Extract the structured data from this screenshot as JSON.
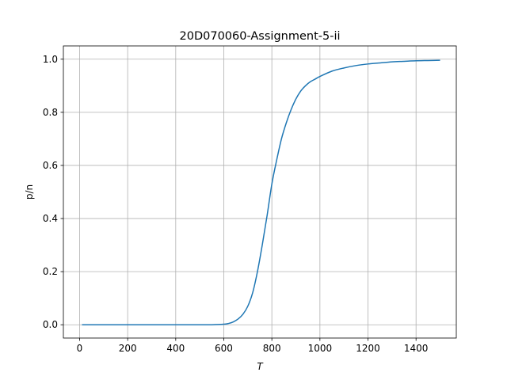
{
  "chart_data": {
    "type": "line",
    "title": "20D070060-Assignment-5-ii",
    "xlabel": "T",
    "ylabel": "p/n",
    "xlim": [
      -67.5,
      1567.5
    ],
    "ylim": [
      -0.05,
      1.05
    ],
    "xticks": [
      0,
      200,
      400,
      600,
      800,
      1000,
      1200,
      1400
    ],
    "yticks": [
      0.0,
      0.2,
      0.4,
      0.6,
      0.8,
      1.0
    ],
    "xtick_labels": [
      "0",
      "200",
      "400",
      "600",
      "800",
      "1000",
      "1200",
      "1400"
    ],
    "ytick_labels": [
      "0.0",
      "0.2",
      "0.4",
      "0.6",
      "0.8",
      "1.0"
    ],
    "grid": true,
    "series": [
      {
        "color": "#1f77b4",
        "x": [
          10,
          100,
          200,
          300,
          400,
          500,
          550,
          600,
          620,
          640,
          660,
          680,
          700,
          720,
          740,
          760,
          780,
          800,
          820,
          840,
          860,
          880,
          900,
          920,
          940,
          960,
          980,
          1000,
          1050,
          1100,
          1150,
          1200,
          1250,
          1300,
          1350,
          1400,
          1450,
          1500
        ],
        "y": [
          0.0,
          0.0,
          0.0,
          0.0,
          0.0,
          0.0,
          0.0,
          0.002,
          0.005,
          0.011,
          0.022,
          0.04,
          0.07,
          0.12,
          0.2,
          0.3,
          0.41,
          0.53,
          0.62,
          0.7,
          0.76,
          0.81,
          0.85,
          0.88,
          0.9,
          0.915,
          0.925,
          0.935,
          0.955,
          0.967,
          0.976,
          0.982,
          0.986,
          0.99,
          0.992,
          0.994,
          0.995,
          0.996
        ]
      }
    ]
  }
}
